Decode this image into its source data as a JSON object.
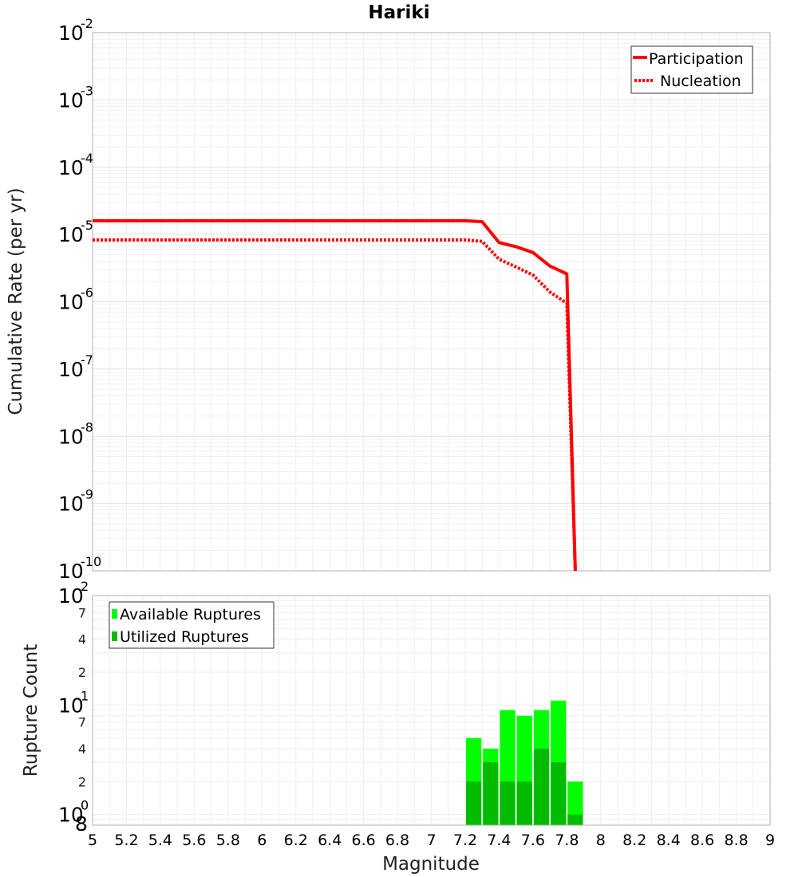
{
  "chart_data": [
    {
      "type": "line",
      "title": "Hariki",
      "xlabel": "Magnitude",
      "ylabel": "Cumulative Rate (per yr)",
      "yscale": "log",
      "xlim": [
        5,
        9
      ],
      "ylim": [
        1e-10,
        0.01
      ],
      "series": [
        {
          "name": "Participation",
          "style": "solid",
          "color": "#ff0000",
          "x": [
            5.0,
            5.5,
            6.0,
            6.5,
            7.0,
            7.2,
            7.3,
            7.4,
            7.5,
            7.6,
            7.7,
            7.8,
            7.85
          ],
          "y": [
            1.6e-05,
            1.6e-05,
            1.6e-05,
            1.6e-05,
            1.6e-05,
            1.6e-05,
            1.55e-05,
            7.6e-06,
            6.6e-06,
            5.4e-06,
            3.4e-06,
            2.6e-06,
            1e-10
          ]
        },
        {
          "name": "Nucleation",
          "style": "dotted",
          "color": "#ff0000",
          "x": [
            5.0,
            5.5,
            6.0,
            6.5,
            7.0,
            7.2,
            7.3,
            7.4,
            7.5,
            7.6,
            7.7,
            7.8,
            7.85
          ],
          "y": [
            8.3e-06,
            8.3e-06,
            8.3e-06,
            8.3e-06,
            8.3e-06,
            8.3e-06,
            7.9e-06,
            4.3e-06,
            3.3e-06,
            2.5e-06,
            1.4e-06,
            9.5e-07,
            1e-10
          ]
        }
      ],
      "legend": "top-right",
      "grid": true
    },
    {
      "type": "bar",
      "xlabel": "Magnitude",
      "ylabel": "Rupture Count",
      "yscale": "log",
      "xlim": [
        5,
        9
      ],
      "ylim": [
        0.8,
        100
      ],
      "categories": [
        7.25,
        7.35,
        7.45,
        7.55,
        7.65,
        7.75,
        7.85
      ],
      "series": [
        {
          "name": "Available Ruptures",
          "color": "#00ff00",
          "values": [
            5,
            4,
            9,
            8,
            9,
            11,
            2
          ]
        },
        {
          "name": "Utilized Ruptures",
          "color": "#00bb00",
          "values": [
            2,
            3,
            2,
            2,
            4,
            3,
            1
          ]
        }
      ],
      "legend": "top-left",
      "grid": true
    }
  ],
  "axes": {
    "x_ticks": [
      "5",
      "5.2",
      "5.4",
      "5.6",
      "5.8",
      "6",
      "6.2",
      "6.4",
      "6.6",
      "6.8",
      "7",
      "7.2",
      "7.4",
      "7.6",
      "7.8",
      "8",
      "8.2",
      "8.4",
      "8.6",
      "8.8",
      "9"
    ],
    "top_y_exponents": [
      "-2",
      "-3",
      "-4",
      "-5",
      "-6",
      "-7",
      "-8",
      "-9",
      "-10"
    ],
    "top_y_base": "10",
    "bottom_y_major": [
      {
        "base": "10",
        "exp": "2"
      },
      {
        "base": "10",
        "exp": "1"
      },
      {
        "base": "10",
        "exp": "0"
      }
    ],
    "bottom_y_minor": [
      "7",
      "4",
      "2",
      "7",
      "4",
      "2"
    ],
    "bottom_y_min_label": "8"
  }
}
